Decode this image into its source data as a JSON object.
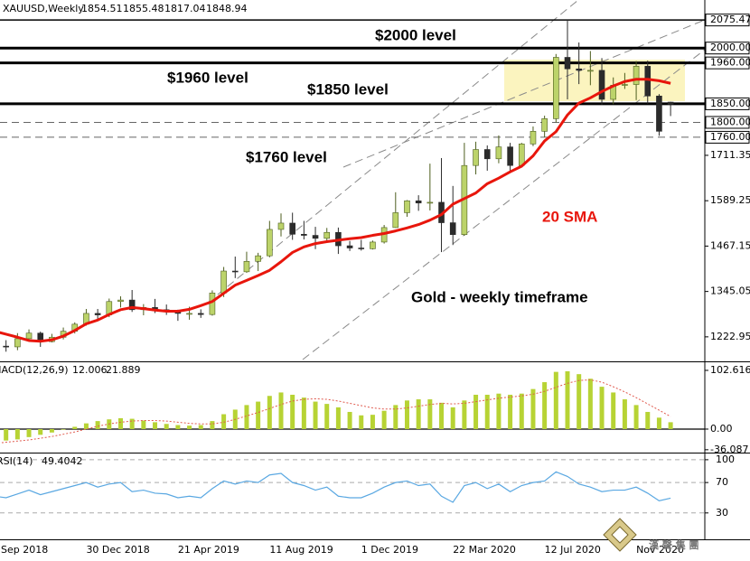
{
  "chart_data": [
    {
      "type": "candlestick",
      "title": "XAUUSD,Weekly",
      "categories": [
        "Sep 2018",
        null,
        null,
        null,
        null,
        null,
        null,
        null,
        "30 Dec 2018",
        null,
        null,
        null,
        null,
        null,
        null,
        null,
        "21 Apr 2019",
        null,
        null,
        null,
        null,
        null,
        null,
        null,
        "11 Aug 2019",
        null,
        null,
        null,
        null,
        null,
        null,
        null,
        "1 Dec 2019",
        null,
        null,
        null,
        null,
        null,
        null,
        null,
        "22 Mar 2020",
        null,
        null,
        null,
        null,
        null,
        null,
        null,
        "12 Jul 2020",
        null,
        null,
        null,
        null,
        null,
        null,
        null,
        "Nov 2020",
        null,
        null,
        null
      ],
      "open": [
        1201,
        1198,
        1196,
        1218,
        1233,
        1210,
        1222,
        1238,
        1257,
        1286,
        1282,
        1318,
        1322,
        1296,
        1302,
        1296,
        1292,
        1286,
        1286,
        1283,
        1341,
        1400,
        1398,
        1426,
        1441,
        1512,
        1529,
        1499,
        1496,
        1488,
        1504,
        1468,
        1462,
        1460,
        1478,
        1517,
        1557,
        1589,
        1583,
        1585,
        1530,
        1498,
        1684,
        1727,
        1702,
        1734,
        1684,
        1742,
        1776,
        1810,
        1975,
        1944,
        1940,
        1940,
        1862,
        1900,
        1902,
        1951,
        1871,
        1854.51
      ],
      "high": [
        1212,
        1214,
        1233,
        1243,
        1237,
        1231,
        1248,
        1262,
        1298,
        1298,
        1326,
        1332,
        1349,
        1311,
        1325,
        1310,
        1296,
        1304,
        1297,
        1348,
        1411,
        1439,
        1452,
        1449,
        1535,
        1555,
        1557,
        1535,
        1519,
        1516,
        1517,
        1481,
        1484,
        1482,
        1524,
        1612,
        1591,
        1604,
        1689,
        1704,
        1629,
        1745,
        1748,
        1738,
        1765,
        1745,
        1745,
        1789,
        1818,
        1984,
        2075.47,
        2015,
        1992,
        1973,
        1921,
        1933,
        1965,
        1966,
        1876,
        1855.48
      ],
      "low": [
        1180,
        1183,
        1187,
        1211,
        1196,
        1208,
        1216,
        1232,
        1253,
        1268,
        1276,
        1302,
        1290,
        1281,
        1287,
        1282,
        1266,
        1269,
        1274,
        1280,
        1330,
        1381,
        1395,
        1400,
        1437,
        1493,
        1484,
        1485,
        1459,
        1480,
        1446,
        1454,
        1455,
        1458,
        1474,
        1516,
        1546,
        1562,
        1563,
        1451,
        1470,
        1495,
        1660,
        1670,
        1690,
        1670,
        1680,
        1736,
        1760,
        1800,
        1862,
        1903,
        1900,
        1848,
        1849,
        1890,
        1860,
        1850,
        1764,
        1817.04
      ],
      "close": [
        1198,
        1196,
        1218,
        1233,
        1210,
        1222,
        1238,
        1257,
        1286,
        1282,
        1318,
        1322,
        1296,
        1302,
        1296,
        1292,
        1286,
        1286,
        1283,
        1341,
        1400,
        1398,
        1426,
        1441,
        1512,
        1529,
        1499,
        1496,
        1488,
        1504,
        1468,
        1462,
        1460,
        1478,
        1517,
        1557,
        1589,
        1583,
        1585,
        1530,
        1498,
        1684,
        1727,
        1702,
        1734,
        1684,
        1742,
        1776,
        1810,
        1975,
        1944,
        1940,
        1940,
        1862,
        1900,
        1902,
        1951,
        1871,
        1776,
        1848.94
      ],
      "up_color": "#bcd36a",
      "down_color": "#2b2b2b",
      "sma": {
        "color": "#e8160c",
        "values": [
          1238,
          1230,
          1222,
          1213,
          1211,
          1215,
          1225,
          1240,
          1258,
          1268,
          1283,
          1296,
          1302,
          1299,
          1295,
          1292,
          1292,
          1297,
          1307,
          1318,
          1340,
          1362,
          1375,
          1388,
          1402,
          1425,
          1450,
          1465,
          1474,
          1479,
          1483,
          1487,
          1490,
          1496,
          1501,
          1508,
          1516,
          1525,
          1537,
          1552,
          1580,
          1595,
          1610,
          1635,
          1650,
          1667,
          1682,
          1710,
          1750,
          1775,
          1820,
          1852,
          1866,
          1883,
          1898,
          1910,
          1916,
          1916,
          1912,
          1905
        ]
      },
      "ylim": [
        1157,
        2122
      ],
      "yticks": [
        2075.47,
        {
          "value": 2000,
          "label": "2000.00"
        },
        {
          "value": 1960,
          "label": "1960.00"
        },
        {
          "value": 1850,
          "label": "1850.00"
        },
        {
          "value": 1800,
          "label": "1800.00"
        },
        {
          "value": 1760,
          "label": "1760.00"
        },
        1711.35,
        1589.25,
        1467.15,
        1345.05,
        1222.95
      ],
      "hlines": [
        {
          "value": 2075.47,
          "style": "solid"
        },
        {
          "value": 2000,
          "style": "bold"
        },
        {
          "value": 1960,
          "style": "bold"
        },
        {
          "value": 1850,
          "style": "bold"
        },
        {
          "value": 1800,
          "style": "dashed"
        },
        {
          "value": 1760,
          "style": "dashed"
        }
      ],
      "annotations": [
        {
          "text": "$2000 level",
          "color": "#000000"
        },
        {
          "text": "$1960 level",
          "color": "#000000"
        },
        {
          "text": "$1850 level",
          "color": "#000000"
        },
        {
          "text": "$1760 level",
          "color": "#000000"
        },
        {
          "text": "20 SMA",
          "color": "#e8160c"
        },
        {
          "text": "Gold - weekly timeframe",
          "color": "#000000"
        }
      ],
      "watermark": "漢 聲 集 團"
    },
    {
      "type": "macd",
      "title": "MACD(12,26,9)",
      "color": "#b7d334",
      "values": [
        -22,
        -20,
        -18,
        -14,
        -10,
        -6,
        -1,
        4,
        10,
        14,
        17,
        19,
        18,
        15,
        12,
        9,
        7,
        6,
        7,
        14,
        26,
        34,
        42,
        48,
        58,
        64,
        60,
        55,
        48,
        44,
        38,
        30,
        24,
        25,
        32,
        42,
        50,
        52,
        52,
        46,
        38,
        50,
        60,
        60,
        62,
        60,
        62,
        70,
        82,
        100,
        101,
        96,
        88,
        74,
        64,
        52,
        42,
        30,
        20,
        12.006
      ],
      "signal": {
        "color": "#e05a4e",
        "values": [
          -25,
          -23,
          -21,
          -19,
          -16,
          -13,
          -9,
          -5,
          0,
          5,
          9,
          12,
          14,
          15,
          15,
          14,
          12,
          10,
          9,
          9,
          12,
          17,
          23,
          29,
          36,
          43,
          49,
          52,
          53,
          52,
          49,
          45,
          41,
          37,
          35,
          35,
          37,
          40,
          43,
          45,
          44,
          45,
          48,
          51,
          54,
          56,
          58,
          61,
          66,
          73,
          80,
          85,
          86,
          82,
          74,
          65,
          55,
          44,
          33,
          21.889
        ]
      },
      "ylim": [
        -39.5,
        116.8
      ],
      "yticks": [
        102.616,
        {
          "value": 0,
          "label": "0.00"
        },
        -36.087
      ]
    },
    {
      "type": "line",
      "title": "RSI(14)",
      "color": "#5aa8e2",
      "values": [
        52,
        50,
        55,
        60,
        54,
        58,
        62,
        66,
        70,
        64,
        68,
        70,
        58,
        60,
        56,
        55,
        50,
        52,
        50,
        62,
        72,
        68,
        72,
        70,
        80,
        82,
        70,
        66,
        60,
        64,
        52,
        50,
        50,
        56,
        64,
        70,
        72,
        66,
        68,
        52,
        44,
        66,
        70,
        62,
        68,
        58,
        66,
        70,
        72,
        84,
        78,
        68,
        64,
        58,
        60,
        60,
        64,
        56,
        46,
        49.4042
      ],
      "ylim": [
        -4.7,
        107
      ],
      "yticks": [
        100,
        70,
        30
      ],
      "grid": "dashed"
    }
  ]
}
